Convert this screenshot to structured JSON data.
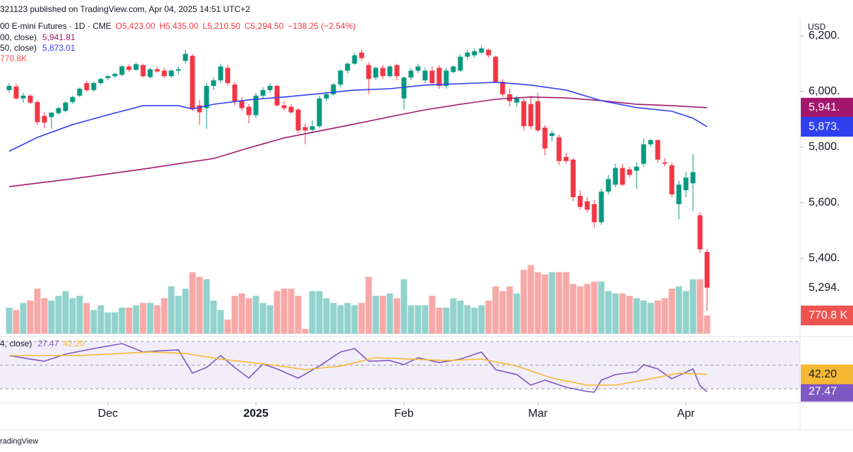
{
  "header": "321123 published on TradingView.com, Apr 04, 2025 14:51 UTC+2",
  "footer": "radingView",
  "currency": "USD",
  "chart_data": [
    {
      "type": "candlestick",
      "title": "00 E-mini Futures · 1D · CME",
      "last_labels": {
        "open": "O5,423.00",
        "high": "H5,435.00",
        "low": "L5,210.50",
        "close": "C5,294.50",
        "change": "−138.25 (−2.54%)"
      },
      "close_label": "5,294.",
      "colors": {
        "up": "#089981",
        "down": "#f23645"
      },
      "open": [
        6005,
        6018,
        5975,
        5985,
        5962,
        5912,
        5908,
        5922,
        5930,
        5962,
        5985,
        6030,
        6005,
        6030,
        6048,
        6055,
        6060,
        6090,
        6078,
        6095,
        6052,
        6080,
        6075,
        6055,
        6075,
        6110,
        6128,
        5950,
        5940,
        6020,
        6040,
        6085,
        6025,
        5965,
        5945,
        5915,
        5985,
        6005,
        6020,
        5950,
        5945,
        5935,
        5872,
        5862,
        5875,
        5975,
        5990,
        6025,
        6075,
        6100,
        6140,
        6095,
        6050,
        6085,
        6055,
        6095,
        5975,
        6050,
        6075,
        6040,
        6075,
        6085,
        6020,
        6070,
        6075,
        6125,
        6130,
        6140,
        6150,
        6125,
        6035,
        5990,
        5960,
        5965,
        5955,
        5965,
        5870,
        5840,
        5835,
        5765,
        5755,
        5625,
        5605,
        5595,
        5530,
        5640,
        5665,
        5725,
        5720,
        5715,
        5740,
        5810,
        5825,
        5745,
        5735,
        5595,
        5645,
        5670,
        5555,
        5423
      ],
      "high": [
        6030,
        6028,
        5995,
        5990,
        5968,
        5925,
        5925,
        5945,
        5965,
        5985,
        6015,
        6038,
        6035,
        6050,
        6060,
        6068,
        6095,
        6098,
        6105,
        6100,
        6085,
        6090,
        6085,
        6080,
        6090,
        6150,
        6135,
        5970,
        6030,
        6050,
        6100,
        6095,
        6035,
        5980,
        5955,
        5995,
        6015,
        6030,
        6025,
        5965,
        5955,
        5940,
        5885,
        5895,
        5985,
        6000,
        6030,
        6080,
        6105,
        6140,
        6150,
        6105,
        6090,
        6095,
        6095,
        6100,
        6055,
        6085,
        6100,
        6085,
        6090,
        6095,
        6085,
        6095,
        6135,
        6150,
        6155,
        6165,
        6155,
        6130,
        6045,
        6010,
        5985,
        5975,
        5985,
        5995,
        5880,
        5860,
        5845,
        5780,
        5760,
        5645,
        5620,
        5610,
        5650,
        5700,
        5740,
        5740,
        5730,
        5745,
        5830,
        5830,
        5830,
        5760,
        5745,
        5680,
        5710,
        5775,
        5565,
        5435
      ],
      "low": [
        5995,
        5970,
        5960,
        5955,
        5880,
        5868,
        5865,
        5915,
        5925,
        5955,
        5980,
        5998,
        6000,
        6025,
        6040,
        6050,
        6055,
        6070,
        6075,
        6050,
        6045,
        6068,
        6050,
        6050,
        6060,
        6100,
        5930,
        5880,
        5865,
        6005,
        6030,
        6020,
        5950,
        5930,
        5885,
        5905,
        5975,
        5995,
        5945,
        5930,
        5920,
        5850,
        5810,
        5850,
        5870,
        5965,
        5985,
        6015,
        6065,
        6095,
        6110,
        5990,
        6040,
        6045,
        6050,
        6040,
        5935,
        6040,
        6065,
        6030,
        6025,
        6010,
        6010,
        6065,
        6070,
        6115,
        6120,
        6135,
        6120,
        6030,
        5980,
        5945,
        5945,
        5860,
        5865,
        5855,
        5770,
        5820,
        5735,
        5740,
        5605,
        5575,
        5565,
        5510,
        5520,
        5630,
        5655,
        5660,
        5690,
        5650,
        5730,
        5800,
        5745,
        5730,
        5620,
        5540,
        5620,
        5570,
        5420,
        5210.5
      ],
      "close": [
        6020,
        5975,
        5985,
        5960,
        5890,
        5888,
        5924,
        5940,
        5960,
        5980,
        6010,
        6005,
        6030,
        6045,
        6055,
        6063,
        6090,
        6078,
        6098,
        6055,
        6080,
        6072,
        6055,
        6075,
        6080,
        6135,
        5940,
        5925,
        6020,
        6040,
        6090,
        6030,
        5965,
        5940,
        5915,
        5985,
        6005,
        6020,
        5950,
        5940,
        5925,
        5860,
        5860,
        5875,
        5975,
        5990,
        6025,
        6075,
        6100,
        6130,
        6120,
        6045,
        6085,
        6055,
        6090,
        6055,
        6050,
        6075,
        6090,
        6075,
        6030,
        6020,
        6075,
        6090,
        6125,
        6140,
        6145,
        6155,
        6130,
        6035,
        5990,
        5965,
        5975,
        5875,
        5875,
        5860,
        5795,
        5850,
        5750,
        5750,
        5620,
        5585,
        5575,
        5530,
        5640,
        5685,
        5725,
        5665,
        5700,
        5730,
        5810,
        5825,
        5755,
        5740,
        5630,
        5665,
        5690,
        5710,
        5432.75,
        5294.5
      ],
      "ylim": [
        5129,
        6253
      ],
      "yticks": [
        {
          "value": 6200,
          "label": "6,200."
        },
        {
          "value": 6000,
          "label": "6,000."
        },
        {
          "value": 5800,
          "label": "5,800."
        },
        {
          "value": 5600,
          "label": "5,600."
        },
        {
          "value": 5400,
          "label": "5,400."
        }
      ],
      "xticks": [
        {
          "value": 14,
          "label": "Dec"
        },
        {
          "value": 35,
          "label": "2025"
        },
        {
          "value": 56,
          "label": "Feb"
        },
        {
          "value": 75,
          "label": "Mar"
        },
        {
          "value": 96,
          "label": "Apr"
        }
      ],
      "series": [
        {
          "name": "00, close)",
          "color": "#a3166d",
          "value_label": "5,941.81",
          "badge": "5,941.",
          "x": [
            0,
            9,
            19,
            29,
            34,
            39,
            44,
            49,
            54,
            59,
            64,
            69,
            74,
            79,
            84,
            89,
            94,
            99
          ],
          "values": [
            5658,
            5686,
            5721,
            5759,
            5797,
            5833,
            5858,
            5883,
            5909,
            5934,
            5954,
            5972,
            5980,
            5977,
            5967,
            5954,
            5949,
            5941.81
          ]
        },
        {
          "name": "50, close)",
          "color": "#2f3ff0",
          "value_label": "5,873.01",
          "badge": "5,873.",
          "x": [
            0,
            4,
            9,
            14,
            19,
            24,
            26,
            29,
            34,
            39,
            44,
            49,
            54,
            59,
            64,
            69,
            74,
            79,
            84,
            89,
            94,
            97,
            99
          ],
          "values": [
            5785,
            5835,
            5881,
            5916,
            5949,
            5949,
            5937,
            5954,
            5970,
            5980,
            5992,
            6005,
            6010,
            6023,
            6028,
            6033,
            6023,
            6005,
            5967,
            5942,
            5929,
            5904,
            5873.01
          ]
        }
      ]
    },
    {
      "type": "bar",
      "colors": {
        "up": "#92d2cc",
        "down": "#f7a9a7"
      },
      "ylim": [
        0,
        13200000
      ],
      "value_label": "770.8K",
      "badge": "770.8 K",
      "values": [
        1100000,
        1000000,
        1300000,
        1400000,
        1900000,
        1500000,
        1400000,
        1600000,
        1800000,
        1500000,
        1600000,
        1300000,
        1000000,
        1200000,
        900000,
        900000,
        1100000,
        1100000,
        1200000,
        1300000,
        1300000,
        1200000,
        1500000,
        2000000,
        1600000,
        1900000,
        2600000,
        2400000,
        2300000,
        1400000,
        1000000,
        600000,
        1600000,
        1700000,
        1500000,
        1600000,
        1300000,
        1200000,
        1800000,
        1900000,
        1900000,
        1600000,
        200000,
        1800000,
        1800000,
        1500000,
        1300000,
        1200000,
        1300000,
        1200000,
        1300000,
        2400000,
        1600000,
        1600000,
        1700000,
        1500000,
        2300000,
        1200000,
        1200000,
        1200000,
        1600000,
        1100000,
        1100000,
        1500000,
        1400000,
        1200000,
        1100000,
        1200000,
        1400000,
        2000000,
        1800000,
        2000000,
        1700000,
        2700000,
        2900000,
        2600000,
        2500000,
        2600000,
        2600000,
        2600000,
        2100000,
        2000000,
        2100000,
        2200000,
        2200000,
        1800000,
        1700000,
        1700000,
        1600000,
        1500000,
        1400000,
        1300000,
        1400000,
        1500000,
        1900000,
        2000000,
        1800000,
        2300000,
        2300000,
        770800
      ]
    },
    {
      "type": "line",
      "title": "4, close)",
      "ylim": [
        20,
        70
      ],
      "yticks": [
        30,
        50,
        70
      ],
      "band": [
        30,
        70
      ],
      "series": [
        {
          "color": "#7e57c2",
          "value_label": "27.47",
          "x": [
            0,
            3,
            5,
            8,
            12,
            16,
            19,
            22,
            24,
            26,
            28,
            30,
            32,
            34,
            36,
            38,
            41,
            44,
            47,
            49,
            51,
            54,
            56,
            58,
            61,
            64,
            67,
            69,
            72,
            74,
            76,
            79,
            82,
            83,
            84,
            86,
            89,
            90,
            92,
            94,
            97,
            98,
            99
          ],
          "values": [
            58.1,
            55.1,
            53.3,
            59.3,
            64.0,
            68.2,
            61.1,
            62.3,
            62.9,
            43.2,
            48.0,
            58.1,
            48.0,
            39.0,
            51.0,
            46.8,
            39.0,
            49.2,
            61.1,
            64.0,
            53.3,
            53.9,
            50.4,
            56.3,
            52.1,
            55.1,
            61.1,
            46.2,
            42.0,
            33.1,
            37.3,
            31.3,
            27.7,
            27.1,
            37.3,
            42.0,
            44.4,
            50.4,
            46.8,
            38.5,
            46.8,
            32.5,
            27.47
          ]
        },
        {
          "color": "#f5b935",
          "value_label": "42.20",
          "x": [
            0,
            10,
            20,
            25,
            30,
            37,
            42,
            47,
            52,
            57,
            62,
            67,
            72,
            77,
            82,
            86,
            90,
            95,
            99
          ],
          "values": [
            58.1,
            58.1,
            61.1,
            59.9,
            55.1,
            50.4,
            46.2,
            49.2,
            56.3,
            55.1,
            53.9,
            55.1,
            49.2,
            39.0,
            33.1,
            33.1,
            37.3,
            43.2,
            42.2
          ]
        }
      ]
    }
  ]
}
